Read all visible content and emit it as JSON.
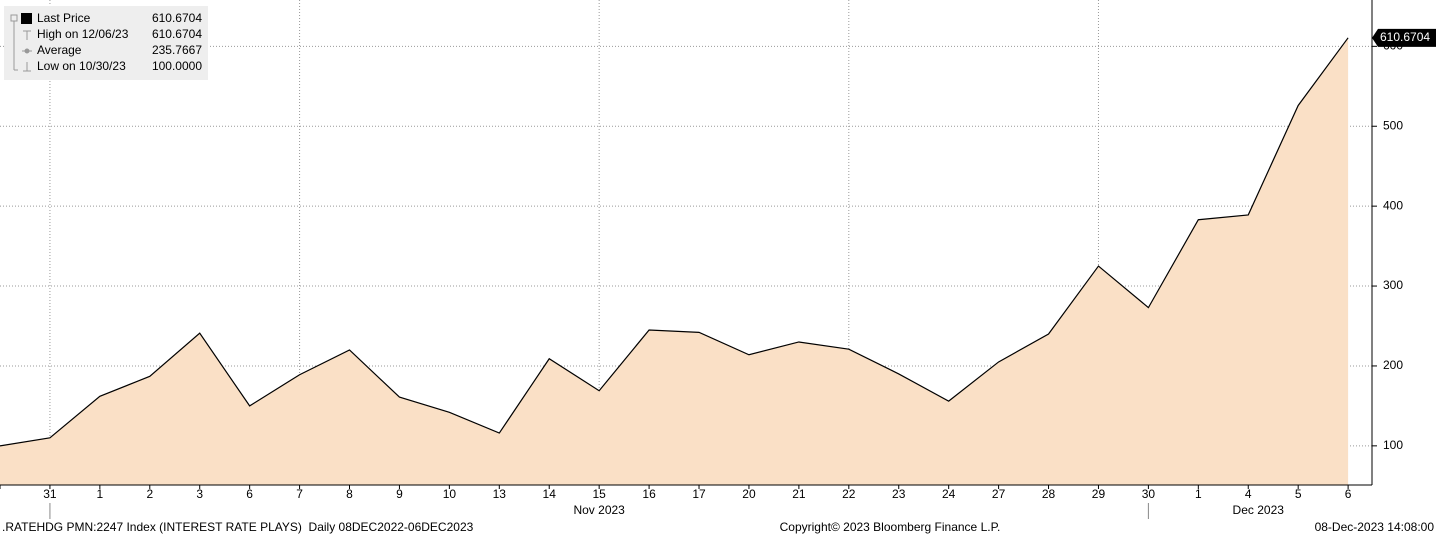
{
  "chart_data": {
    "type": "area",
    "categories": [
      null,
      "31",
      "1",
      "2",
      "3",
      "6",
      "7",
      "8",
      "9",
      "10",
      "13",
      "14",
      "15",
      "16",
      "17",
      "20",
      "21",
      "22",
      "23",
      "24",
      "27",
      "28",
      "29",
      "30",
      "1",
      "4",
      "5",
      "6"
    ],
    "values": [
      100,
      110,
      162,
      187,
      241,
      150,
      189,
      220,
      161,
      142,
      116,
      209,
      169,
      245,
      242,
      214,
      230,
      221,
      190,
      156,
      205,
      240,
      325,
      273,
      383,
      389,
      526,
      610.6704
    ],
    "color": "#fae0c6",
    "line_color": "#000000",
    "ylim": [
      51,
      658
    ],
    "yticks": [
      100,
      200,
      300,
      400,
      500,
      600
    ],
    "grid": true,
    "months": [
      "Nov 2023",
      "Dec 2023"
    ],
    "legend": [
      {
        "label": "Last Price",
        "value": "610.6704"
      },
      {
        "label": "High on 12/06/23",
        "value": "610.6704"
      },
      {
        "label": "Average",
        "value": "235.7667"
      },
      {
        "label": "Low on 10/30/23",
        "value": "100.0000"
      }
    ],
    "footer": {
      "left": ".RATEHDG PMN:2247 Index (INTEREST RATE PLAYS)  Daily 08DEC2022-06DEC2023",
      "center": "Copyright© 2023 Bloomberg Finance L.P.",
      "right": "08-Dec-2023 14:08:00"
    }
  }
}
